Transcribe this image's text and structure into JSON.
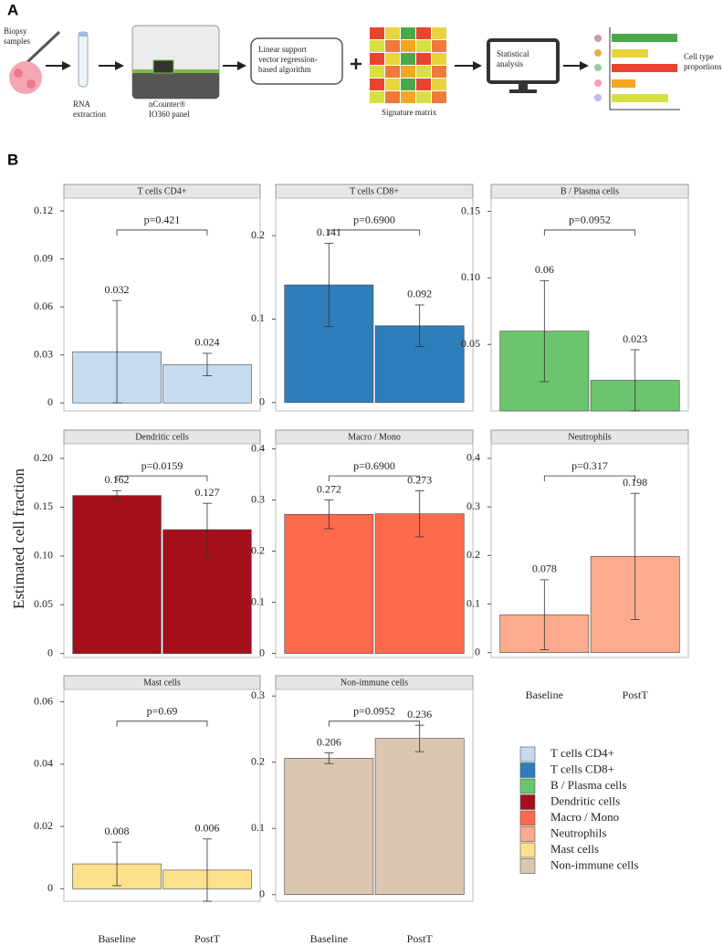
{
  "panel_labels": [
    "A",
    "B"
  ],
  "panel_a": {
    "steps": [
      {
        "lines": [
          "Biopsy",
          "samples"
        ]
      },
      {
        "lines": [
          "RNA",
          "extraction"
        ]
      },
      {
        "lines": [
          "nCounter®",
          "IO360 panel"
        ]
      },
      {
        "lines": [
          "Linear support",
          "vector regression-",
          "based algorithm"
        ]
      },
      {
        "lines": [
          "Signature matrix"
        ]
      },
      {
        "lines": [
          "Statistical",
          "analysis"
        ]
      },
      {
        "lines": [
          "Cell type",
          "proportions"
        ]
      }
    ]
  },
  "y_axis_label": "Estimated cell fraction",
  "chart_data": [
    {
      "type": "bar",
      "annotation": "p=0.421",
      "ylim": [
        -0.005,
        0.128
      ],
      "yticks": [
        0,
        0.03,
        0.06,
        0.09,
        0.12
      ],
      "series": [
        {
          "name": "T cells CD4+",
          "color": "#c6dbef",
          "values": [
            0.032,
            0.024
          ],
          "errors": [
            0.032,
            0.007
          ]
        }
      ]
    },
    {
      "type": "bar",
      "annotation": "p=0.6900",
      "ylim": [
        -0.01,
        0.245
      ],
      "yticks": [
        0,
        0.1,
        0.2
      ],
      "series": [
        {
          "name": "T cells CD8+",
          "color": "#2e7ebc",
          "values": [
            0.141,
            0.092
          ],
          "errors": [
            0.05,
            0.025
          ]
        }
      ]
    },
    {
      "type": "bar",
      "annotation": "p=0.0952",
      "ylim": [
        0,
        0.16
      ],
      "yticks": [
        0.05,
        {
          "value": 0.1,
          "label": "0.10"
        },
        0.15
      ],
      "series": [
        {
          "name": "B / Plasma cells",
          "color": "#6dc46e",
          "values": [
            0.06,
            0.023
          ],
          "errors": [
            0.038,
            0.023
          ]
        }
      ]
    },
    {
      "type": "bar",
      "annotation": "p=0.0159",
      "ylim": [
        -0.004,
        0.215
      ],
      "yticks": [
        0,
        0.05,
        {
          "value": 0.1,
          "label": "0.10"
        },
        0.15,
        {
          "value": 0.2,
          "label": "0.20"
        }
      ],
      "series": [
        {
          "name": "Dendritic cells",
          "color": "#a50f1a",
          "values": [
            0.162,
            0.127
          ],
          "errors": [
            0.005,
            0.027
          ]
        }
      ]
    },
    {
      "type": "bar",
      "annotation": "p=0.6900",
      "ylim": [
        -0.008,
        0.41
      ],
      "yticks": [
        0,
        0.1,
        0.2,
        0.3,
        0.4
      ],
      "series": [
        {
          "name": "Macro / Mono",
          "color": "#fb6a4a",
          "values": [
            0.272,
            0.273
          ],
          "errors": [
            0.028,
            0.045
          ]
        }
      ]
    },
    {
      "type": "bar",
      "annotation": "p=0.317",
      "ylim": [
        -0.01,
        0.43
      ],
      "yticks": [
        0,
        0.1,
        0.2,
        0.3,
        0.4
      ],
      "categories": [
        "Baseline",
        "PostT"
      ],
      "series": [
        {
          "name": "Neutrophils",
          "color": "#fcab8e",
          "values": [
            0.078,
            0.198
          ],
          "errors": [
            0.072,
            0.13
          ]
        }
      ]
    },
    {
      "type": "bar",
      "annotation": "p=0.69",
      "ylim": [
        -0.004,
        0.064
      ],
      "yticks": [
        0,
        0.02,
        0.04,
        0.06
      ],
      "categories": [
        "Baseline",
        "PostT"
      ],
      "series": [
        {
          "name": "Mast cells",
          "color": "#fde08c",
          "values": [
            0.008,
            0.006
          ],
          "errors": [
            0.007,
            0.01
          ]
        }
      ]
    },
    {
      "type": "bar",
      "annotation": "p=0.0952",
      "ylim": [
        -0.01,
        0.31
      ],
      "yticks": [
        0,
        0.1,
        0.2,
        0.3
      ],
      "categories": [
        "Baseline",
        "PostT"
      ],
      "series": [
        {
          "name": "Non-immune cells",
          "color": "#dcc6b0",
          "values": [
            0.206,
            0.236
          ],
          "errors": [
            0.008,
            0.02
          ]
        }
      ]
    }
  ]
}
